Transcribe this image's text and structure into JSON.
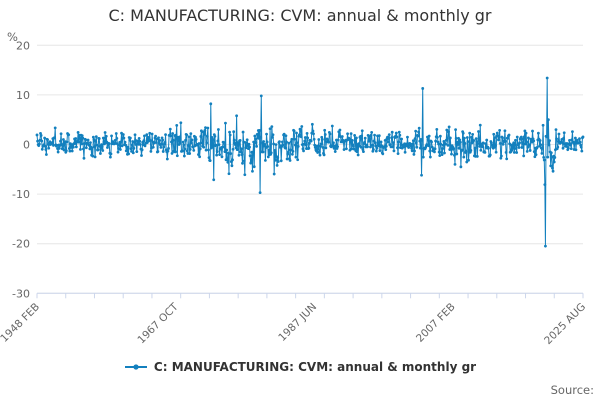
{
  "header": {
    "title": "C: MANUFACTURING: CVM: annual & monthly gr"
  },
  "legend": {
    "series_label": "C: MANUFACTURING: CVM: annual & monthly gr"
  },
  "footer": {
    "source_label": "Source:"
  },
  "colors": {
    "series": "#1380be",
    "grid": "#e6e6e6",
    "axis": "#ccd6eb",
    "text_muted": "#666666",
    "text_dark": "#333333"
  },
  "chart_data": {
    "type": "line",
    "title": "C: MANUFACTURING: CVM: annual & monthly gr",
    "unit_label": "%",
    "ylabel": "%",
    "xlabel": "",
    "ylim": [
      -30,
      20
    ],
    "grid": "horizontal-only",
    "legend_position": "bottom-center",
    "n_months": 931,
    "x_start_label": "1948 FEB",
    "x_end_label": "2025 AUG",
    "yticks": [
      {
        "value": 20,
        "label": "20"
      },
      {
        "value": 10,
        "label": "10"
      },
      {
        "value": 0,
        "label": "0"
      },
      {
        "value": -10,
        "label": "-10"
      },
      {
        "value": -20,
        "label": "-20"
      },
      {
        "value": -30,
        "label": "-30"
      }
    ],
    "xtick_labels": [
      {
        "month": 0,
        "label": "1948 FEB"
      },
      {
        "month": 236,
        "label": "1967 OCT"
      },
      {
        "month": 472,
        "label": "1987 JUN"
      },
      {
        "month": 708,
        "label": "2007 FEB"
      },
      {
        "month": 930,
        "label": "2025 AUG"
      }
    ],
    "minor_tick_count": 20,
    "series": [
      {
        "name": "C: MANUFACTURING: CVM: annual & monthly gr",
        "color": "#1380be",
        "marker_radius": 1.4,
        "description": "Monthly % growth oscillating around 0 (roughly ±2), more volatile 1971-1981, calm 1990s, extreme COVID spikes in 2020.",
        "pattern": {
          "seed": 20250817,
          "shape": 0.6,
          "outlier_chance": 0.035,
          "outlier_gain": 1.7,
          "envelope": [
            [
              0,
              60,
              1.5,
              0.2
            ],
            [
              60,
              130,
              1.9,
              0.1
            ],
            [
              130,
              220,
              1.7,
              0.15
            ],
            [
              220,
              285,
              2.3,
              0.1
            ],
            [
              285,
              340,
              3.2,
              0.0
            ],
            [
              340,
              420,
              3.0,
              0.0
            ],
            [
              420,
              470,
              2.6,
              0.0
            ],
            [
              470,
              560,
              2.0,
              0.1
            ],
            [
              560,
              640,
              1.6,
              0.1
            ],
            [
              640,
              700,
              2.1,
              0.0
            ],
            [
              700,
              745,
              2.5,
              -0.3
            ],
            [
              745,
              860,
              2.1,
              0.05
            ],
            [
              860,
              885,
              3.5,
              0.0
            ],
            [
              885,
              931,
              1.3,
              0.3
            ]
          ]
        },
        "extremes": [
          [
            296,
            8.2
          ],
          [
            301,
            -7.1
          ],
          [
            321,
            4.3
          ],
          [
            327,
            -5.9
          ],
          [
            340,
            5.8
          ],
          [
            354,
            -6.1
          ],
          [
            367,
            -5.4
          ],
          [
            380,
            -9.7
          ],
          [
            382,
            9.8
          ],
          [
            655,
            -6.2
          ],
          [
            657,
            11.3
          ],
          [
            712,
            -4.0
          ],
          [
            722,
            -4.5
          ],
          [
            865,
            -8.1
          ],
          [
            866,
            -20.5
          ],
          [
            869,
            13.4
          ],
          [
            871,
            5.0
          ]
        ]
      }
    ]
  }
}
